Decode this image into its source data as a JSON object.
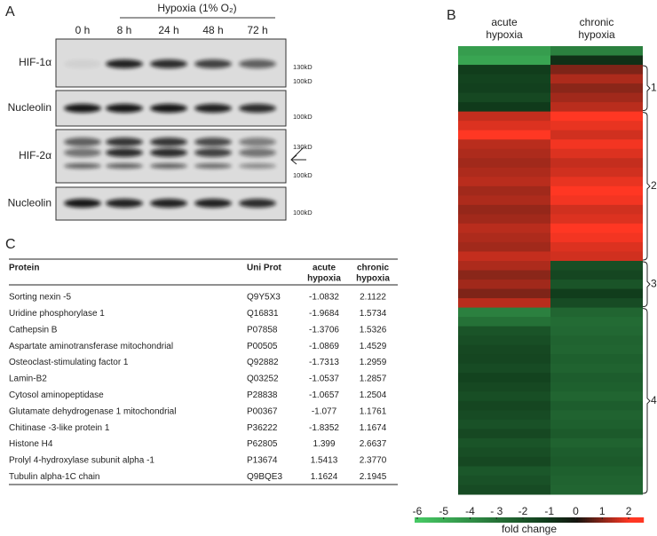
{
  "panels": [
    "A",
    "B",
    "C"
  ],
  "blot": {
    "title": "Hypoxia (1% O₂)",
    "lanes": [
      "0 h",
      "8 h",
      "24 h",
      "48 h",
      "72 h"
    ],
    "rows": [
      {
        "label": "HIF-1α",
        "markers": [
          "130kD",
          "100kD"
        ]
      },
      {
        "label": "Nucleolin",
        "markers": [
          "100kD"
        ]
      },
      {
        "label": "HIF-2α",
        "markers": [
          "130kD",
          "100kD"
        ]
      },
      {
        "label": "Nucleolin",
        "markers": [
          "100kD"
        ]
      }
    ]
  },
  "heatmap": {
    "columns": [
      [
        "acute",
        "hypoxia"
      ],
      [
        "chronic",
        "hypoxia"
      ]
    ],
    "clusters": [
      "1",
      "2",
      "3",
      "4"
    ],
    "rows": [
      [
        -4.5,
        -3.5
      ],
      [
        -4.8,
        -0.8
      ],
      [
        -1.2,
        0.9
      ],
      [
        -1.4,
        1.3
      ],
      [
        -1.3,
        1.0
      ],
      [
        -1.6,
        1.2
      ],
      [
        -1.1,
        1.4
      ],
      [
        1.5,
        2.3
      ],
      [
        1.7,
        1.8
      ],
      [
        2.0,
        1.6
      ],
      [
        1.4,
        1.9
      ],
      [
        1.3,
        1.7
      ],
      [
        1.2,
        1.5
      ],
      [
        1.3,
        1.6
      ],
      [
        1.4,
        1.8
      ],
      [
        1.2,
        2.0
      ],
      [
        1.3,
        1.9
      ],
      [
        1.1,
        1.6
      ],
      [
        1.2,
        1.7
      ],
      [
        1.4,
        2.1
      ],
      [
        1.3,
        1.9
      ],
      [
        1.2,
        1.7
      ],
      [
        1.5,
        1.6
      ],
      [
        1.3,
        -1.8
      ],
      [
        1.0,
        -1.5
      ],
      [
        1.2,
        -2.0
      ],
      [
        0.9,
        -1.2
      ],
      [
        1.4,
        -1.7
      ],
      [
        -3.5,
        -2.6
      ],
      [
        -3.0,
        -2.8
      ],
      [
        -2.0,
        -2.7
      ],
      [
        -1.8,
        -2.5
      ],
      [
        -1.6,
        -2.6
      ],
      [
        -1.5,
        -2.4
      ],
      [
        -1.7,
        -2.5
      ],
      [
        -1.4,
        -2.3
      ],
      [
        -1.6,
        -2.4
      ],
      [
        -1.8,
        -2.6
      ],
      [
        -1.5,
        -2.3
      ],
      [
        -1.7,
        -2.5
      ],
      [
        -1.9,
        -2.4
      ],
      [
        -1.6,
        -2.2
      ],
      [
        -2.0,
        -2.5
      ],
      [
        -1.8,
        -2.3
      ],
      [
        -1.6,
        -2.2
      ],
      [
        -2.1,
        -2.4
      ],
      [
        -1.9,
        -2.5
      ],
      [
        -1.7,
        -2.6
      ]
    ],
    "colorbar": {
      "lim": [
        -6.1,
        2.57
      ],
      "ticks": [
        -6,
        -5,
        -4,
        {
          "value": -3,
          "label": "- 3"
        },
        -2,
        -1,
        0,
        1,
        2
      ],
      "label": "fold change"
    }
  },
  "table": {
    "header": [
      [
        "Protein"
      ],
      [
        "Uni Prot"
      ],
      [
        "acute",
        "hypoxia"
      ],
      [
        "chronic",
        "hypoxia"
      ]
    ],
    "rows": [
      [
        "Sorting nexin -5",
        "Q9Y5X3",
        "-1.0832",
        "2.1122"
      ],
      [
        "Uridine phosphorylase 1",
        "Q16831",
        "-1.9684",
        "1.5734"
      ],
      [
        "Cathepsin B",
        "P07858",
        "-1.3706",
        "1.5326"
      ],
      [
        "Aspartate aminotransferase mitochondrial",
        "P00505",
        "-1.0869",
        "1.4529"
      ],
      [
        "Osteoclast-stimulating factor 1",
        "Q92882",
        "-1.7313",
        "1.2959"
      ],
      [
        "Lamin-B2",
        "Q03252",
        "-1.0537",
        "1.2857"
      ],
      [
        "Cytosol aminopeptidase",
        "P28838",
        "-1.0657",
        "1.2504"
      ],
      [
        "Glutamate dehydrogenase 1 mitochondrial",
        "P00367",
        "-1.077",
        "1.1761"
      ],
      [
        "Chitinase -3-like protein 1",
        "P36222",
        "-1.8352",
        "1.1674"
      ],
      [
        "Histone H4",
        "P62805",
        "1.399",
        "2.6637"
      ],
      [
        "Prolyl 4-hydroxylase subunit alpha -1",
        "P13674",
        "1.5413",
        "2.3770"
      ],
      [
        "Tubulin alpha-1C chain",
        "Q9BQE3",
        "1.1624",
        "2.1945"
      ]
    ]
  }
}
